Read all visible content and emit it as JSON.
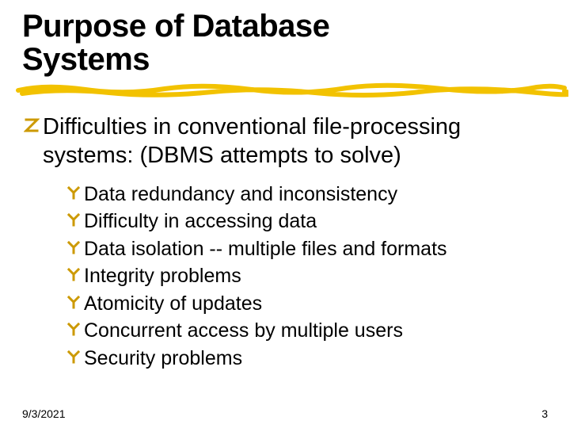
{
  "title_fontsize": 40,
  "title_line1": "Purpose of Database",
  "title_line2": "Systems",
  "underline": {
    "color": "#f2c200",
    "stroke_width": 6
  },
  "main_bullet": {
    "icon_color": "#cc9900",
    "fontsize": 29,
    "text": "Difficulties in conventional file-processing systems: (DBMS attempts to solve)"
  },
  "sub_bullets": {
    "icon_color": "#cc9900",
    "fontsize": 25,
    "items": [
      "Data redundancy and inconsistency",
      "Difficulty in accessing data",
      "Data isolation -- multiple files and formats",
      "Integrity problems",
      "Atomicity of updates",
      "Concurrent access by multiple users",
      "Security problems"
    ]
  },
  "footer": {
    "fontsize": 14,
    "date": "9/3/2021",
    "page": "3"
  }
}
